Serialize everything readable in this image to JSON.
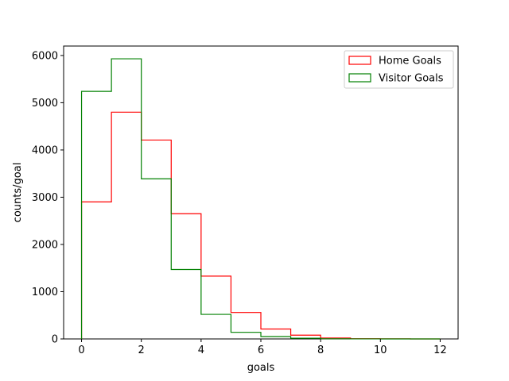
{
  "chart_data": {
    "type": "bar",
    "histtype": "step",
    "title": "",
    "xlabel": "goals",
    "ylabel": "counts/goal",
    "xlim": [
      -0.6,
      12.6
    ],
    "ylim": [
      0,
      6200
    ],
    "xticks": [
      0,
      2,
      4,
      6,
      8,
      10,
      12
    ],
    "yticks": [
      0,
      1000,
      2000,
      3000,
      4000,
      5000,
      6000
    ],
    "grid": false,
    "legend_position": "top-right",
    "bin_edges": [
      0,
      1,
      2,
      3,
      4,
      5,
      6,
      7,
      8,
      9,
      10,
      11,
      12
    ],
    "series": [
      {
        "name": "Home Goals",
        "color": "#ff0000",
        "values": [
          2900,
          4800,
          4210,
          2650,
          1330,
          560,
          210,
          80,
          20,
          5,
          2,
          0
        ]
      },
      {
        "name": "Visitor Goals",
        "color": "#008000",
        "values": [
          5240,
          5930,
          3390,
          1470,
          520,
          140,
          50,
          15,
          3,
          1,
          0,
          0
        ]
      }
    ]
  }
}
